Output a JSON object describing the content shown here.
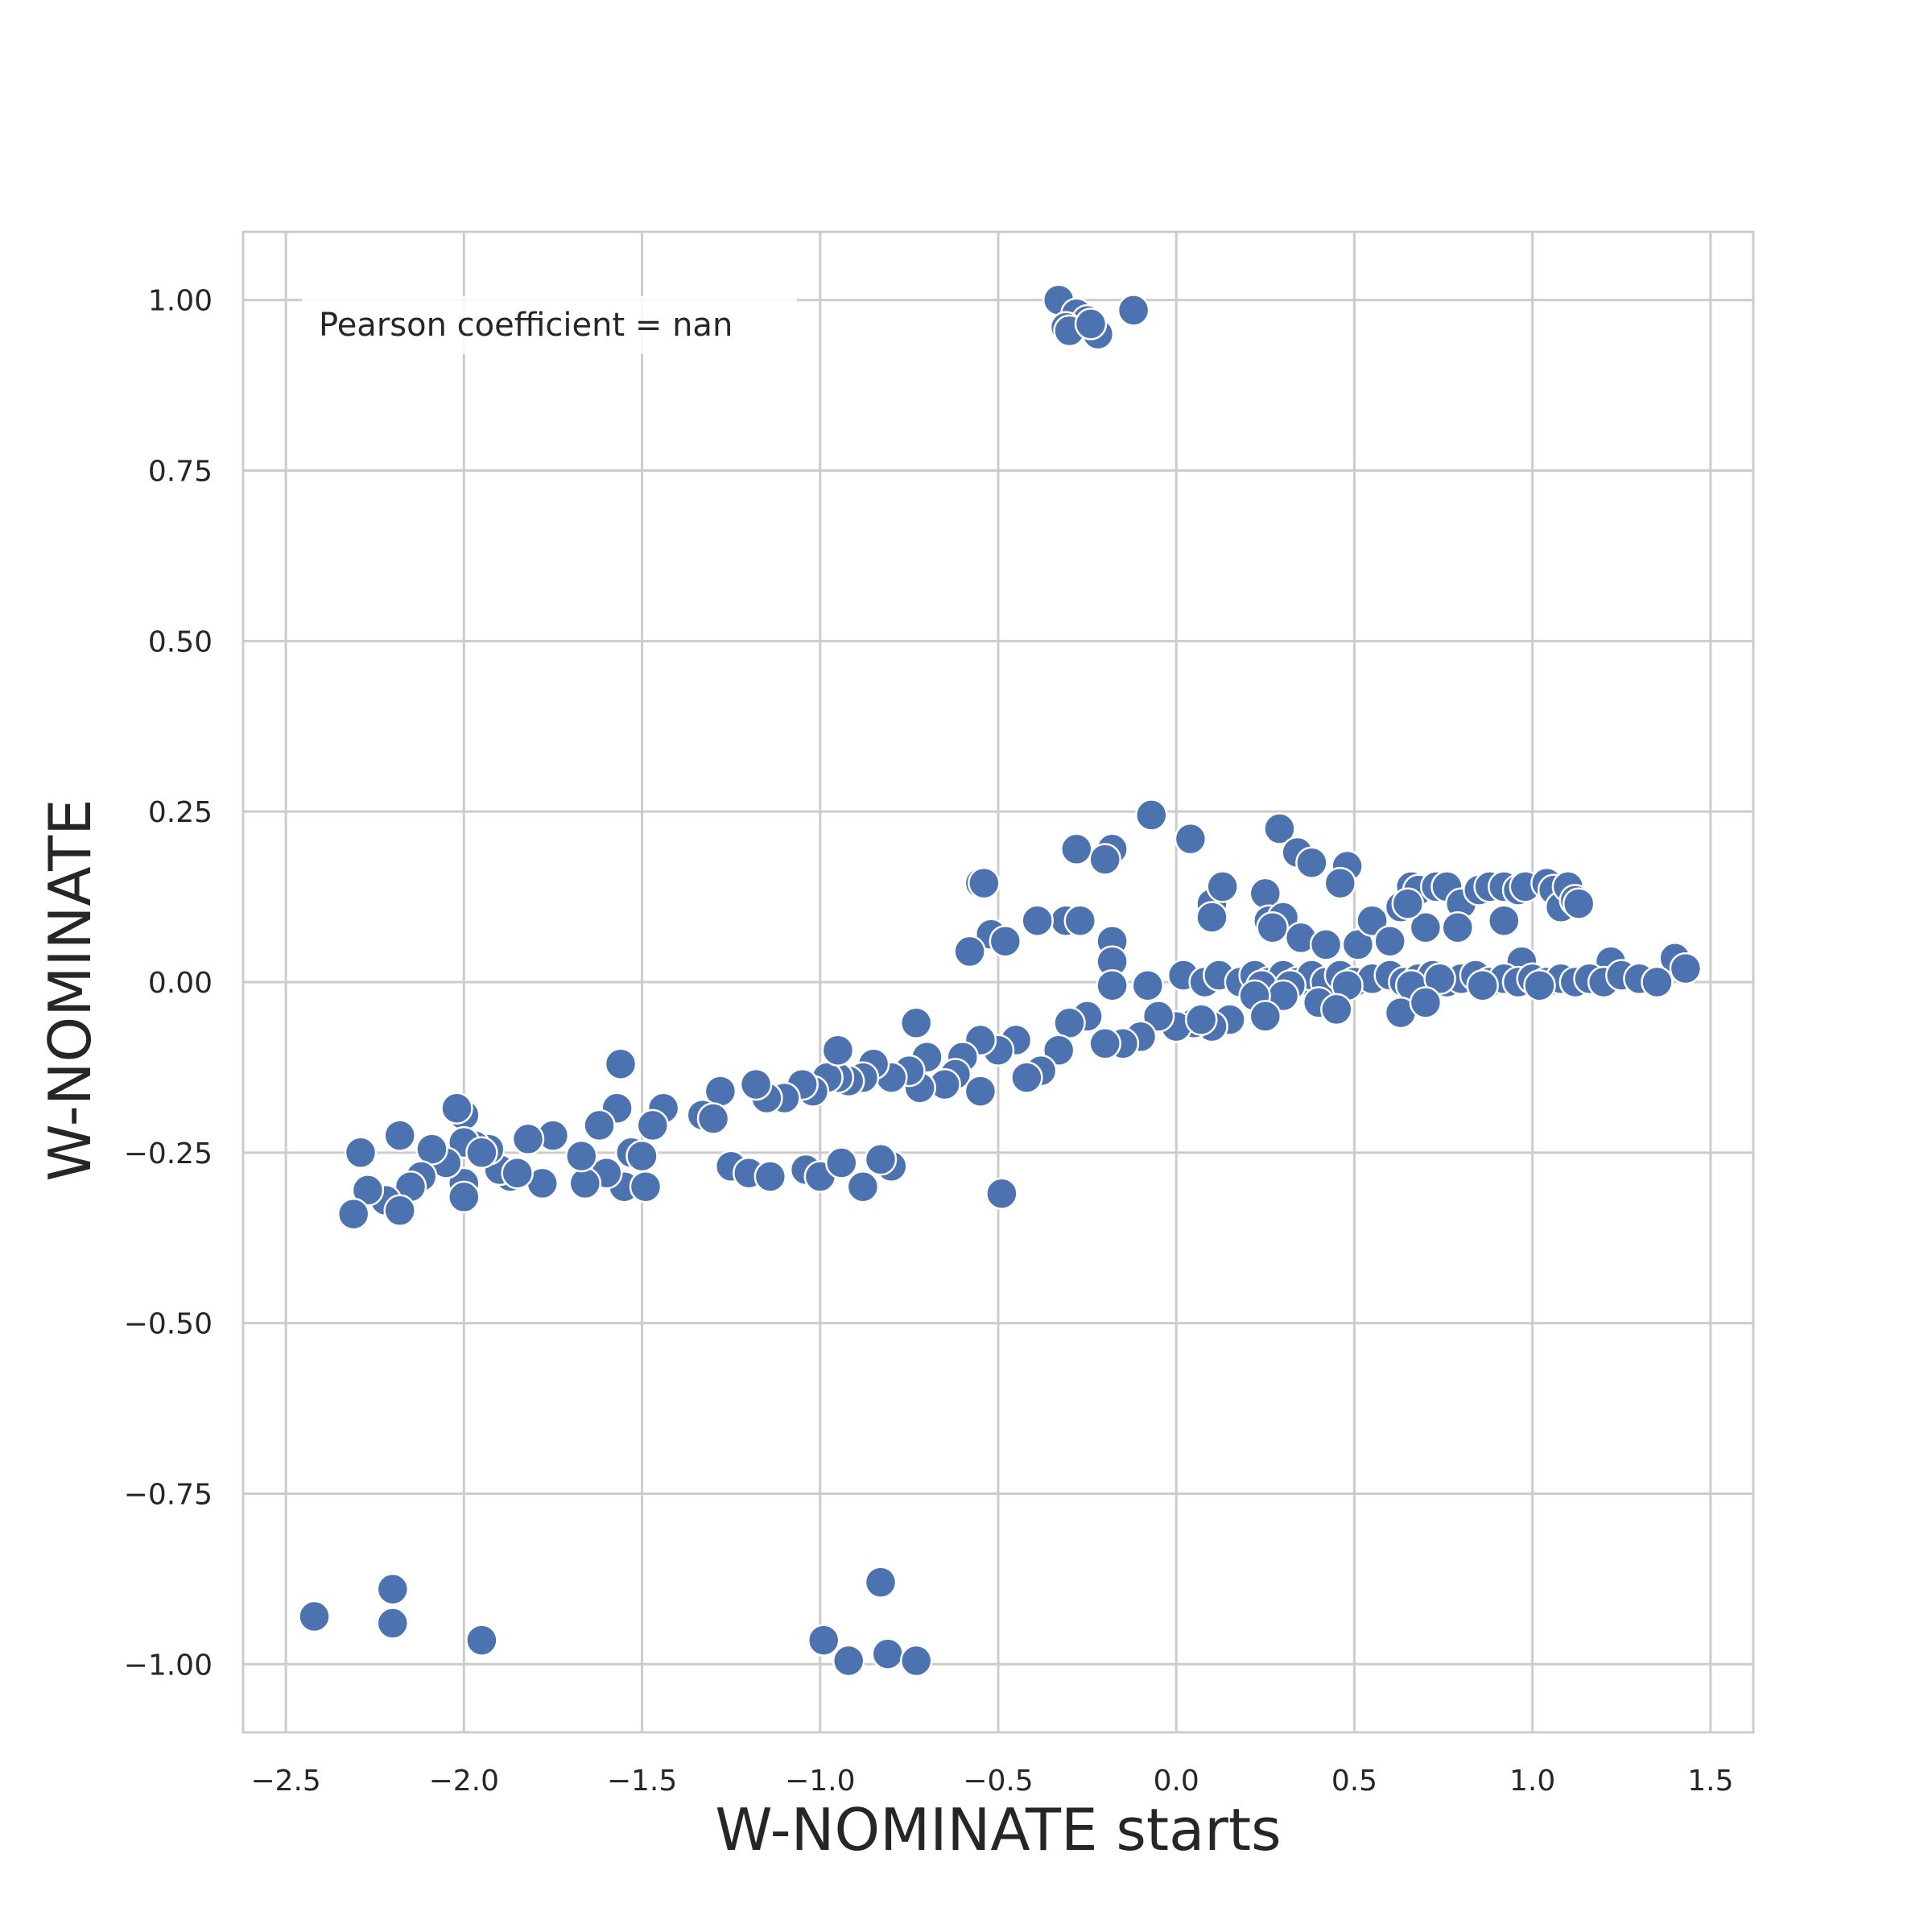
{
  "chart_data": {
    "type": "scatter",
    "title": "",
    "xlabel": "W-NOMINATE starts",
    "ylabel": "W-NOMINATE",
    "xlim": [
      -2.62,
      1.62
    ],
    "ylim": [
      -1.1,
      1.1
    ],
    "xticks": [
      -2.5,
      -2.0,
      -1.5,
      -1.0,
      -0.5,
      0.0,
      0.5,
      1.0,
      1.5
    ],
    "xtick_labels": [
      "−2.5",
      "−2.0",
      "−1.5",
      "−1.0",
      "−0.5",
      "0.0",
      "0.5",
      "1.0",
      "1.5"
    ],
    "yticks": [
      1.0,
      0.75,
      0.5,
      0.25,
      0.0,
      -0.25,
      -0.5,
      -0.75,
      -1.0
    ],
    "ytick_labels": [
      "1.00",
      "0.75",
      "0.50",
      "0.25",
      "0.00",
      "−0.25",
      "−0.50",
      "−0.75",
      "−1.00"
    ],
    "grid": true,
    "annotation": "Pearson coefficient = nan",
    "marker_color": "#4c72b0",
    "marker_edge_color": "#ffffff",
    "series": [
      {
        "points": [
          [
            -0.33,
            1.0
          ],
          [
            -0.28,
            0.98
          ],
          [
            -0.25,
            0.97
          ],
          [
            -0.12,
            0.985
          ],
          [
            -0.31,
            0.96
          ],
          [
            -0.22,
            0.95
          ],
          [
            -0.3,
            0.955
          ],
          [
            -0.24,
            0.965
          ],
          [
            -0.07,
            0.245
          ],
          [
            0.04,
            0.21
          ],
          [
            0.29,
            0.225
          ],
          [
            0.34,
            0.19
          ],
          [
            0.38,
            0.175
          ],
          [
            0.48,
            0.17
          ],
          [
            0.46,
            0.145
          ],
          [
            -0.28,
            0.195
          ],
          [
            -0.18,
            0.195
          ],
          [
            -0.2,
            0.18
          ],
          [
            -0.55,
            0.145
          ],
          [
            -0.54,
            0.145
          ],
          [
            0.1,
            0.115
          ],
          [
            0.13,
            0.14
          ],
          [
            0.1,
            0.095
          ],
          [
            0.25,
            0.13
          ],
          [
            0.26,
            0.09
          ],
          [
            0.3,
            0.095
          ],
          [
            0.27,
            0.08
          ],
          [
            -0.31,
            0.09
          ],
          [
            -0.39,
            0.09
          ],
          [
            -0.27,
            0.09
          ],
          [
            -0.52,
            0.07
          ],
          [
            -0.48,
            0.06
          ],
          [
            -0.58,
            0.045
          ],
          [
            -0.18,
            0.06
          ],
          [
            -0.18,
            0.03
          ],
          [
            0.35,
            0.065
          ],
          [
            0.42,
            0.055
          ],
          [
            0.51,
            0.055
          ],
          [
            0.55,
            0.09
          ],
          [
            0.6,
            0.06
          ],
          [
            0.63,
            0.11
          ],
          [
            0.66,
            0.14
          ],
          [
            0.68,
            0.135
          ],
          [
            0.7,
            0.08
          ],
          [
            0.73,
            0.14
          ],
          [
            0.76,
            0.14
          ],
          [
            0.8,
            0.115
          ],
          [
            0.79,
            0.08
          ],
          [
            0.85,
            0.135
          ],
          [
            0.88,
            0.14
          ],
          [
            0.92,
            0.09
          ],
          [
            0.92,
            0.14
          ],
          [
            0.96,
            0.135
          ],
          [
            0.98,
            0.14
          ],
          [
            1.04,
            0.145
          ],
          [
            1.06,
            0.135
          ],
          [
            1.08,
            0.11
          ],
          [
            1.1,
            0.14
          ],
          [
            1.12,
            0.12
          ],
          [
            1.13,
            0.115
          ],
          [
            0.65,
            0.115
          ],
          [
            0.97,
            0.03
          ],
          [
            1.22,
            0.03
          ],
          [
            1.4,
            0.035
          ],
          [
            1.43,
            0.02
          ],
          [
            0.02,
            0.01
          ],
          [
            0.08,
            0.0
          ],
          [
            0.12,
            0.01
          ],
          [
            0.18,
            0.0
          ],
          [
            0.22,
            0.01
          ],
          [
            0.26,
            0.0
          ],
          [
            0.3,
            0.01
          ],
          [
            0.34,
            0.0
          ],
          [
            0.38,
            0.01
          ],
          [
            0.42,
            0.0
          ],
          [
            0.46,
            0.01
          ],
          [
            0.5,
            0.0
          ],
          [
            0.55,
            0.005
          ],
          [
            0.6,
            0.01
          ],
          [
            0.64,
            0.0
          ],
          [
            0.68,
            0.005
          ],
          [
            0.72,
            0.01
          ],
          [
            0.76,
            0.0
          ],
          [
            0.8,
            0.005
          ],
          [
            0.84,
            0.01
          ],
          [
            0.88,
            0.0
          ],
          [
            0.92,
            0.005
          ],
          [
            0.96,
            0.0
          ],
          [
            1.0,
            0.005
          ],
          [
            1.04,
            0.0
          ],
          [
            1.08,
            0.005
          ],
          [
            1.12,
            0.0
          ],
          [
            1.16,
            0.005
          ],
          [
            1.2,
            0.0
          ],
          [
            1.25,
            0.01
          ],
          [
            1.3,
            0.005
          ],
          [
            1.35,
            0.0
          ],
          [
            0.24,
            -0.005
          ],
          [
            0.32,
            -0.005
          ],
          [
            0.48,
            -0.005
          ],
          [
            0.66,
            -0.005
          ],
          [
            0.86,
            -0.005
          ],
          [
            1.02,
            -0.005
          ],
          [
            0.74,
            0.005
          ],
          [
            0.3,
            -0.02
          ],
          [
            0.4,
            -0.03
          ],
          [
            0.45,
            -0.04
          ],
          [
            0.63,
            -0.045
          ],
          [
            0.7,
            -0.03
          ],
          [
            0.22,
            -0.02
          ],
          [
            0.25,
            -0.05
          ],
          [
            0.15,
            -0.055
          ],
          [
            0.1,
            -0.065
          ],
          [
            0.05,
            -0.06
          ],
          [
            0.0,
            -0.065
          ],
          [
            -0.05,
            -0.05
          ],
          [
            -0.1,
            -0.08
          ],
          [
            -0.15,
            -0.09
          ],
          [
            -0.2,
            -0.09
          ],
          [
            -0.25,
            -0.05
          ],
          [
            -0.3,
            -0.06
          ],
          [
            -0.33,
            -0.1
          ],
          [
            -0.38,
            -0.13
          ],
          [
            -0.18,
            -0.005
          ],
          [
            -0.08,
            -0.005
          ],
          [
            0.07,
            -0.055
          ],
          [
            -0.42,
            -0.14
          ],
          [
            -0.45,
            -0.085
          ],
          [
            -0.5,
            -0.1
          ],
          [
            -0.55,
            -0.085
          ],
          [
            -0.6,
            -0.11
          ],
          [
            -0.62,
            -0.135
          ],
          [
            -0.65,
            -0.15
          ],
          [
            -0.7,
            -0.11
          ],
          [
            -0.72,
            -0.155
          ],
          [
            -0.75,
            -0.13
          ],
          [
            -0.8,
            -0.14
          ],
          [
            -0.85,
            -0.12
          ],
          [
            -0.88,
            -0.14
          ],
          [
            -0.92,
            -0.145
          ],
          [
            -0.95,
            -0.14
          ],
          [
            -0.98,
            -0.14
          ],
          [
            -1.02,
            -0.16
          ],
          [
            -1.05,
            -0.15
          ],
          [
            -1.1,
            -0.17
          ],
          [
            -1.15,
            -0.17
          ],
          [
            -1.18,
            -0.15
          ],
          [
            -0.95,
            -0.1
          ],
          [
            -0.73,
            -0.06
          ],
          [
            -0.55,
            -0.16
          ],
          [
            -1.28,
            -0.16
          ],
          [
            -1.33,
            -0.195
          ],
          [
            -1.3,
            -0.2
          ],
          [
            -1.44,
            -0.185
          ],
          [
            -1.47,
            -0.21
          ],
          [
            -1.56,
            -0.12
          ],
          [
            -1.57,
            -0.185
          ],
          [
            -1.62,
            -0.21
          ],
          [
            -1.53,
            -0.25
          ],
          [
            -1.5,
            -0.255
          ],
          [
            -1.55,
            -0.3
          ],
          [
            -1.49,
            -0.3
          ],
          [
            -1.6,
            -0.28
          ],
          [
            -1.66,
            -0.295
          ],
          [
            -1.67,
            -0.255
          ],
          [
            -1.75,
            -0.225
          ],
          [
            -1.78,
            -0.295
          ],
          [
            -1.82,
            -0.23
          ],
          [
            -1.87,
            -0.285
          ],
          [
            -1.9,
            -0.275
          ],
          [
            -1.93,
            -0.245
          ],
          [
            -1.97,
            -0.24
          ],
          [
            -2.0,
            -0.195
          ],
          [
            -2.02,
            -0.185
          ],
          [
            -2.0,
            -0.235
          ],
          [
            -2.0,
            -0.295
          ],
          [
            -2.0,
            -0.315
          ],
          [
            -2.05,
            -0.265
          ],
          [
            -2.09,
            -0.245
          ],
          [
            -2.12,
            -0.285
          ],
          [
            -2.18,
            -0.225
          ],
          [
            -2.15,
            -0.3
          ],
          [
            -2.22,
            -0.32
          ],
          [
            -2.27,
            -0.305
          ],
          [
            -2.29,
            -0.25
          ],
          [
            -2.31,
            -0.34
          ],
          [
            -2.18,
            -0.335
          ],
          [
            -1.95,
            -0.25
          ],
          [
            -1.85,
            -0.28
          ],
          [
            -1.25,
            -0.27
          ],
          [
            -1.2,
            -0.28
          ],
          [
            -1.14,
            -0.285
          ],
          [
            -1.04,
            -0.275
          ],
          [
            -1.0,
            -0.285
          ],
          [
            -0.94,
            -0.265
          ],
          [
            -0.88,
            -0.3
          ],
          [
            -0.8,
            -0.27
          ],
          [
            -0.83,
            -0.26
          ],
          [
            -0.49,
            -0.31
          ],
          [
            -2.42,
            -0.93
          ],
          [
            -2.2,
            -0.89
          ],
          [
            -2.2,
            -0.94
          ],
          [
            -1.95,
            -0.965
          ],
          [
            -0.83,
            -0.88
          ],
          [
            -0.99,
            -0.965
          ],
          [
            -0.92,
            -0.995
          ],
          [
            -0.81,
            -0.985
          ],
          [
            -0.73,
            -0.995
          ]
        ]
      }
    ]
  }
}
